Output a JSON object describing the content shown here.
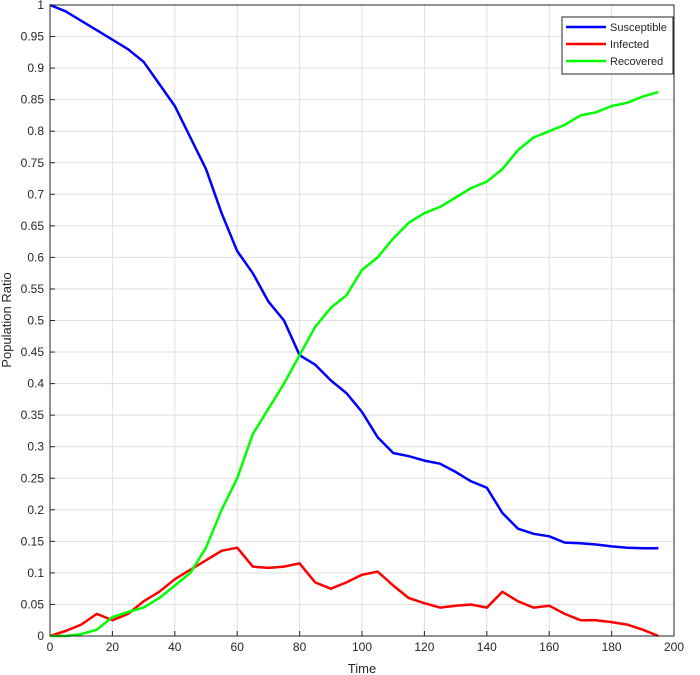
{
  "chart_data": {
    "type": "line",
    "xlabel": "Time",
    "ylabel": "Population Ratio",
    "xlim": [
      0,
      200
    ],
    "ylim": [
      0,
      1
    ],
    "xticks": [
      0,
      20,
      40,
      60,
      80,
      100,
      120,
      140,
      160,
      180,
      200
    ],
    "yticks": [
      0,
      0.05,
      0.1,
      0.15,
      0.2,
      0.25,
      0.3,
      0.35,
      0.4,
      0.45,
      0.5,
      0.55,
      0.6,
      0.65,
      0.7,
      0.75,
      0.8,
      0.85,
      0.9,
      0.95,
      1
    ],
    "xtick_labels": [
      "0",
      "20",
      "40",
      "60",
      "80",
      "100",
      "120",
      "140",
      "160",
      "180",
      "200"
    ],
    "ytick_labels": [
      "0",
      "0.05",
      "0.1",
      "0.15",
      "0.2",
      "0.25",
      "0.3",
      "0.35",
      "0.4",
      "0.45",
      "0.5",
      "0.55",
      "0.6",
      "0.65",
      "0.7",
      "0.75",
      "0.8",
      "0.85",
      "0.9",
      "0.95",
      "1"
    ],
    "grid": true,
    "legend_position": "top-right",
    "series": [
      {
        "name": "Susceptible",
        "color": "#0000ff",
        "x": [
          0,
          5,
          10,
          15,
          20,
          25,
          30,
          35,
          40,
          45,
          50,
          55,
          60,
          65,
          70,
          75,
          80,
          85,
          90,
          95,
          100,
          105,
          110,
          115,
          120,
          125,
          130,
          135,
          140,
          145,
          150,
          155,
          160,
          165,
          170,
          175,
          180,
          185,
          190,
          195
        ],
        "y": [
          1.0,
          0.99,
          0.975,
          0.96,
          0.945,
          0.93,
          0.91,
          0.875,
          0.84,
          0.79,
          0.74,
          0.67,
          0.61,
          0.575,
          0.53,
          0.5,
          0.445,
          0.43,
          0.405,
          0.385,
          0.355,
          0.315,
          0.29,
          0.285,
          0.278,
          0.273,
          0.26,
          0.245,
          0.235,
          0.195,
          0.17,
          0.162,
          0.158,
          0.148,
          0.147,
          0.145,
          0.142,
          0.14,
          0.139,
          0.139
        ]
      },
      {
        "name": "Infected",
        "color": "#ff0000",
        "x": [
          0,
          5,
          10,
          15,
          20,
          25,
          30,
          35,
          40,
          45,
          50,
          55,
          60,
          65,
          70,
          75,
          80,
          85,
          90,
          95,
          100,
          105,
          110,
          115,
          120,
          125,
          130,
          135,
          140,
          145,
          150,
          155,
          160,
          165,
          170,
          175,
          180,
          185,
          190,
          195
        ],
        "y": [
          0.0,
          0.008,
          0.018,
          0.035,
          0.025,
          0.035,
          0.055,
          0.07,
          0.09,
          0.105,
          0.12,
          0.135,
          0.14,
          0.11,
          0.108,
          0.11,
          0.115,
          0.085,
          0.075,
          0.085,
          0.097,
          0.102,
          0.08,
          0.06,
          0.052,
          0.045,
          0.048,
          0.05,
          0.045,
          0.07,
          0.055,
          0.045,
          0.048,
          0.035,
          0.025,
          0.025,
          0.022,
          0.018,
          0.01,
          0.0
        ]
      },
      {
        "name": "Recovered",
        "color": "#00ff00",
        "x": [
          0,
          5,
          10,
          15,
          20,
          25,
          30,
          35,
          40,
          45,
          50,
          55,
          60,
          65,
          70,
          75,
          80,
          85,
          90,
          95,
          100,
          105,
          110,
          115,
          120,
          125,
          130,
          135,
          140,
          145,
          150,
          155,
          160,
          165,
          170,
          175,
          180,
          185,
          190,
          195
        ],
        "y": [
          0.0,
          0.0,
          0.003,
          0.01,
          0.03,
          0.038,
          0.045,
          0.06,
          0.08,
          0.1,
          0.14,
          0.2,
          0.25,
          0.32,
          0.36,
          0.4,
          0.445,
          0.49,
          0.52,
          0.54,
          0.58,
          0.6,
          0.63,
          0.655,
          0.67,
          0.68,
          0.695,
          0.71,
          0.72,
          0.74,
          0.77,
          0.79,
          0.8,
          0.81,
          0.825,
          0.83,
          0.84,
          0.845,
          0.855,
          0.862
        ]
      }
    ]
  }
}
